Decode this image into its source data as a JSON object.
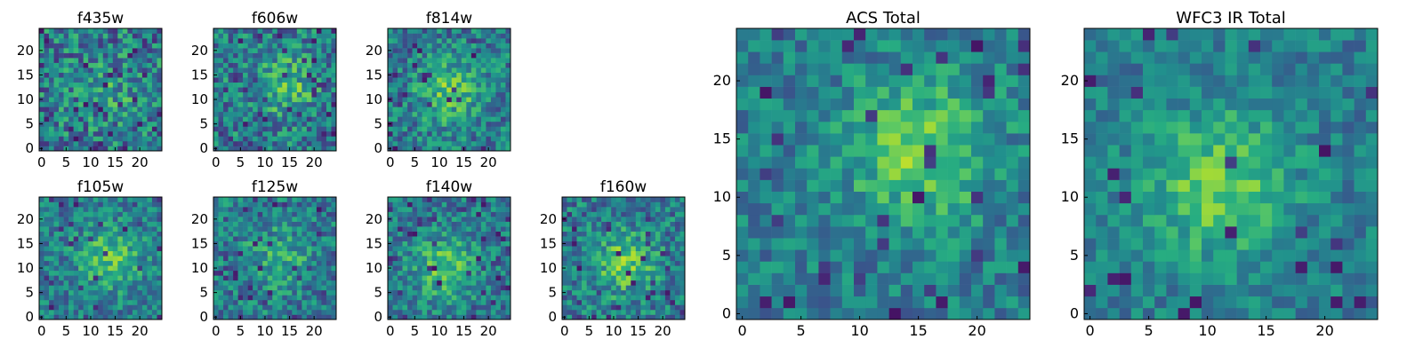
{
  "chart_data": [
    {
      "type": "heatmap",
      "title": "f435w",
      "xticks": [
        "0",
        "5",
        "10",
        "15",
        "20"
      ],
      "yticks": [
        "0",
        "5",
        "10",
        "15",
        "20"
      ],
      "xlim": [
        0,
        25
      ],
      "ylim": [
        0,
        25
      ],
      "grid": false,
      "colormap": "viridis",
      "n": 25,
      "hotspot": [
        14,
        12
      ],
      "hot": 0.12,
      "noise": 0.55,
      "dark": 0.07,
      "seed": 11
    },
    {
      "type": "heatmap",
      "title": "f606w",
      "xticks": [
        "0",
        "5",
        "10",
        "15",
        "20"
      ],
      "yticks": [
        "0",
        "5",
        "10",
        "15",
        "20"
      ],
      "xlim": [
        0,
        25
      ],
      "ylim": [
        0,
        25
      ],
      "grid": false,
      "colormap": "viridis",
      "n": 25,
      "hotspot": [
        14,
        13
      ],
      "hot": 0.25,
      "noise": 0.5,
      "dark": 0.06,
      "seed": 23
    },
    {
      "type": "heatmap",
      "title": "f814w",
      "xticks": [
        "0",
        "5",
        "10",
        "15",
        "20"
      ],
      "yticks": [
        "0",
        "5",
        "10",
        "15",
        "20"
      ],
      "xlim": [
        0,
        25
      ],
      "ylim": [
        0,
        25
      ],
      "grid": false,
      "colormap": "viridis",
      "n": 25,
      "hotspot": [
        12,
        12
      ],
      "hot": 0.3,
      "noise": 0.45,
      "dark": 0.04,
      "seed": 37
    },
    {
      "type": "heatmap",
      "title": "f105w",
      "xticks": [
        "0",
        "5",
        "10",
        "15",
        "20"
      ],
      "yticks": [
        "0",
        "5",
        "10",
        "15",
        "20"
      ],
      "xlim": [
        0,
        25
      ],
      "ylim": [
        0,
        25
      ],
      "grid": false,
      "colormap": "viridis",
      "n": 25,
      "hotspot": [
        14,
        12
      ],
      "hot": 0.3,
      "noise": 0.4,
      "dark": 0.05,
      "seed": 41
    },
    {
      "type": "heatmap",
      "title": "f125w",
      "xticks": [
        "0",
        "5",
        "10",
        "15",
        "20"
      ],
      "yticks": [
        "0",
        "5",
        "10",
        "15",
        "20"
      ],
      "xlim": [
        0,
        25
      ],
      "ylim": [
        0,
        25
      ],
      "grid": false,
      "colormap": "viridis",
      "n": 25,
      "hotspot": [
        13,
        12
      ],
      "hot": 0.2,
      "noise": 0.45,
      "dark": 0.07,
      "seed": 53
    },
    {
      "type": "heatmap",
      "title": "f140w",
      "xticks": [
        "0",
        "5",
        "10",
        "15",
        "20"
      ],
      "yticks": [
        "0",
        "5",
        "10",
        "15",
        "20"
      ],
      "xlim": [
        0,
        25
      ],
      "ylim": [
        0,
        25
      ],
      "grid": false,
      "colormap": "viridis",
      "n": 25,
      "hotspot": [
        11,
        10
      ],
      "hot": 0.3,
      "noise": 0.4,
      "dark": 0.06,
      "seed": 67
    },
    {
      "type": "heatmap",
      "title": "f160w",
      "xticks": [
        "0",
        "5",
        "10",
        "15",
        "20"
      ],
      "yticks": [
        "0",
        "5",
        "10",
        "15",
        "20"
      ],
      "xlim": [
        0,
        25
      ],
      "ylim": [
        0,
        25
      ],
      "grid": false,
      "colormap": "viridis",
      "n": 25,
      "hotspot": [
        12,
        11
      ],
      "hot": 0.3,
      "noise": 0.45,
      "dark": 0.06,
      "seed": 79
    },
    {
      "type": "heatmap",
      "title": "ACS Total",
      "xticks": [
        "0",
        "5",
        "10",
        "15",
        "20"
      ],
      "yticks": [
        "0",
        "5",
        "10",
        "15",
        "20"
      ],
      "xlim": [
        0,
        25
      ],
      "ylim": [
        0,
        25
      ],
      "grid": false,
      "colormap": "viridis",
      "n": 25,
      "hotspot": [
        15,
        14
      ],
      "hot": 0.35,
      "noise": 0.35,
      "dark": 0.05,
      "seed": 97
    },
    {
      "type": "heatmap",
      "title": "WFC3 IR Total",
      "xticks": [
        "0",
        "5",
        "10",
        "15",
        "20"
      ],
      "yticks": [
        "0",
        "5",
        "10",
        "15",
        "20"
      ],
      "xlim": [
        0,
        25
      ],
      "ylim": [
        0,
        25
      ],
      "grid": false,
      "colormap": "viridis",
      "n": 25,
      "hotspot": [
        11,
        11
      ],
      "hot": 0.35,
      "noise": 0.3,
      "dark": 0.04,
      "seed": 113,
      "masked_corner": "top-right"
    }
  ]
}
